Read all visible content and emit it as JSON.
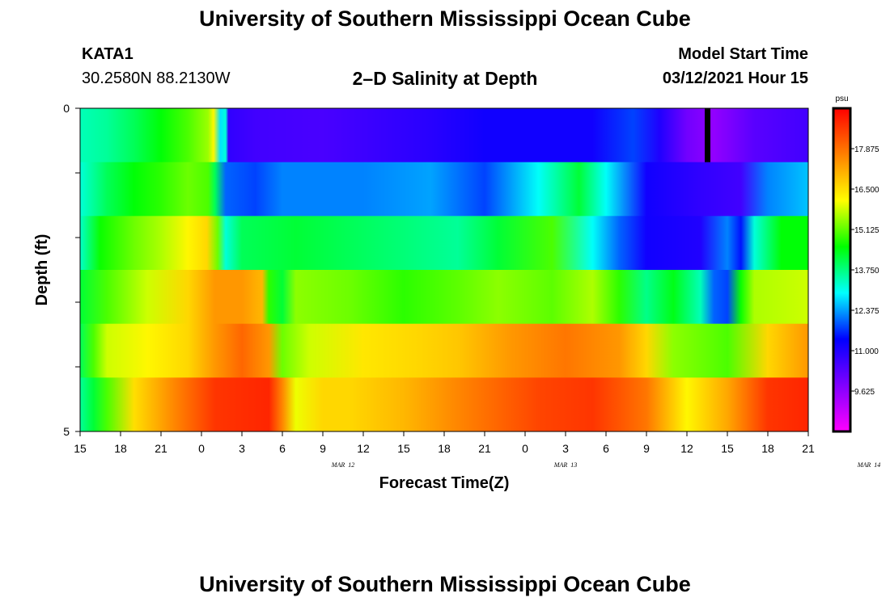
{
  "page": {
    "title": "University of Southern Mississippi Ocean Cube",
    "footer_title": "University of Southern Mississippi Ocean Cube",
    "station": "KATA1",
    "coords": "30.2580N 88.2130W",
    "subtitle": "2–D Salinity at Depth",
    "model_label": "Model Start Time",
    "model_time": "03/12/2021 Hour 15"
  },
  "chart_data": {
    "type": "heatmap",
    "xlabel": "Forecast Time(Z)",
    "ylabel": "Depth (ft)",
    "x_ticks": [
      "15",
      "18",
      "21",
      "0",
      "3",
      "6",
      "9",
      "12",
      "15",
      "18",
      "21",
      "0",
      "3",
      "6",
      "9",
      "12",
      "15",
      "18",
      "21"
    ],
    "date_labels": [
      {
        "text": "MAR 12",
        "at_hour": 19.5
      },
      {
        "text": "MAR 13",
        "at_hour": 36
      },
      {
        "text": "MAR 14",
        "at_hour": 58.5
      }
    ],
    "xlim_hours": [
      0,
      54
    ],
    "y_ticks": [
      "0",
      "5"
    ],
    "ylim": [
      0,
      5
    ],
    "depth_levels": [
      0,
      1,
      2,
      3,
      4,
      5
    ],
    "colorbar": {
      "unit": "psu",
      "min": 8.25,
      "max": 19.25,
      "ticks": [
        17.875,
        16.5,
        15.125,
        13.75,
        12.375,
        11.0,
        9.625
      ],
      "colors": [
        "#ff00ff",
        "#8000ff",
        "#0000ff",
        "#00ffff",
        "#00ff00",
        "#ffff00",
        "#ff8000",
        "#ff0000"
      ]
    },
    "missing_marker_hour": 46.5,
    "rows": [
      {
        "depth": 0,
        "points": [
          [
            0,
            13.4
          ],
          [
            2,
            13.6
          ],
          [
            4,
            14.0
          ],
          [
            6,
            14.5
          ],
          [
            8,
            15.0
          ],
          [
            9.5,
            15.5
          ],
          [
            9.9,
            16.2
          ],
          [
            10.4,
            12.8
          ],
          [
            10.8,
            13.2
          ],
          [
            11,
            10.8
          ],
          [
            13,
            10.6
          ],
          [
            18,
            10.5
          ],
          [
            22,
            10.7
          ],
          [
            26,
            10.9
          ],
          [
            30,
            11.2
          ],
          [
            38,
            11.2
          ],
          [
            41,
            11.8
          ],
          [
            43,
            11.0
          ],
          [
            45,
            10.0
          ],
          [
            47,
            9.6
          ],
          [
            50,
            10.3
          ],
          [
            54,
            10.6
          ]
        ]
      },
      {
        "depth": 1,
        "points": [
          [
            0,
            13.2
          ],
          [
            2,
            14.0
          ],
          [
            4,
            14.5
          ],
          [
            6,
            14.8
          ],
          [
            8,
            15.2
          ],
          [
            9.5,
            15.0
          ],
          [
            10,
            14.0
          ],
          [
            10.8,
            12.0
          ],
          [
            13,
            11.8
          ],
          [
            15,
            12.2
          ],
          [
            21,
            12.2
          ],
          [
            26,
            12.4
          ],
          [
            30,
            11.8
          ],
          [
            34,
            13.0
          ],
          [
            37,
            14.2
          ],
          [
            39,
            13.0
          ],
          [
            42,
            11.2
          ],
          [
            46,
            10.8
          ],
          [
            49,
            10.6
          ],
          [
            51,
            12.2
          ],
          [
            54,
            12.6
          ]
        ]
      },
      {
        "depth": 2,
        "points": [
          [
            0,
            13.3
          ],
          [
            1.5,
            14.6
          ],
          [
            4,
            15.2
          ],
          [
            6,
            15.6
          ],
          [
            8,
            16.2
          ],
          [
            9.4,
            16.6
          ],
          [
            10.2,
            15.2
          ],
          [
            10.8,
            13.2
          ],
          [
            12,
            14.0
          ],
          [
            16,
            14.2
          ],
          [
            20,
            14.0
          ],
          [
            24,
            13.8
          ],
          [
            28,
            13.6
          ],
          [
            31,
            14.2
          ],
          [
            35,
            15.0
          ],
          [
            38,
            13.0
          ],
          [
            40,
            12.0
          ],
          [
            42,
            11.2
          ],
          [
            46,
            11.0
          ],
          [
            48,
            12.2
          ],
          [
            49,
            11.5
          ],
          [
            50,
            13.2
          ],
          [
            52,
            14.5
          ],
          [
            54,
            14.5
          ]
        ]
      },
      {
        "depth": 3,
        "points": [
          [
            0,
            14.2
          ],
          [
            2,
            15.0
          ],
          [
            5,
            15.8
          ],
          [
            8,
            16.6
          ],
          [
            10,
            17.4
          ],
          [
            12,
            17.4
          ],
          [
            13.5,
            17.0
          ],
          [
            14,
            14.8
          ],
          [
            15,
            14.2
          ],
          [
            16,
            15.4
          ],
          [
            20,
            15.2
          ],
          [
            24,
            14.8
          ],
          [
            28,
            15.1
          ],
          [
            31,
            15.4
          ],
          [
            35,
            15.1
          ],
          [
            38,
            15.6
          ],
          [
            40,
            14.8
          ],
          [
            42,
            13.7
          ],
          [
            44,
            14.4
          ],
          [
            46,
            13.4
          ],
          [
            47,
            12.0
          ],
          [
            48,
            11.8
          ],
          [
            49,
            14.6
          ],
          [
            50,
            15.6
          ],
          [
            54,
            15.8
          ]
        ]
      },
      {
        "depth": 4,
        "points": [
          [
            0,
            14.0
          ],
          [
            1,
            15.0
          ],
          [
            2,
            15.8
          ],
          [
            5,
            16.2
          ],
          [
            8,
            16.6
          ],
          [
            10,
            17.4
          ],
          [
            12,
            18.0
          ],
          [
            14,
            17.4
          ],
          [
            15,
            15.2
          ],
          [
            17,
            15.8
          ],
          [
            21,
            16.4
          ],
          [
            25,
            16.6
          ],
          [
            28,
            16.8
          ],
          [
            32,
            17.4
          ],
          [
            36,
            17.8
          ],
          [
            40,
            17.4
          ],
          [
            42,
            16.6
          ],
          [
            44,
            15.4
          ],
          [
            48,
            15.0
          ],
          [
            51,
            16.6
          ],
          [
            54,
            17.4
          ]
        ]
      },
      {
        "depth": 5,
        "points": [
          [
            0,
            13.6
          ],
          [
            1,
            14.2
          ],
          [
            2,
            15.0
          ],
          [
            4,
            16.5
          ],
          [
            7,
            17.6
          ],
          [
            10,
            18.6
          ],
          [
            14,
            18.8
          ],
          [
            15,
            17.6
          ],
          [
            16,
            16.0
          ],
          [
            18,
            16.6
          ],
          [
            20,
            16.6
          ],
          [
            24,
            17.0
          ],
          [
            28,
            17.6
          ],
          [
            34,
            18.4
          ],
          [
            38,
            18.6
          ],
          [
            42,
            17.8
          ],
          [
            45,
            16.2
          ],
          [
            48,
            17.2
          ],
          [
            51,
            18.6
          ],
          [
            54,
            18.8
          ]
        ]
      }
    ]
  }
}
